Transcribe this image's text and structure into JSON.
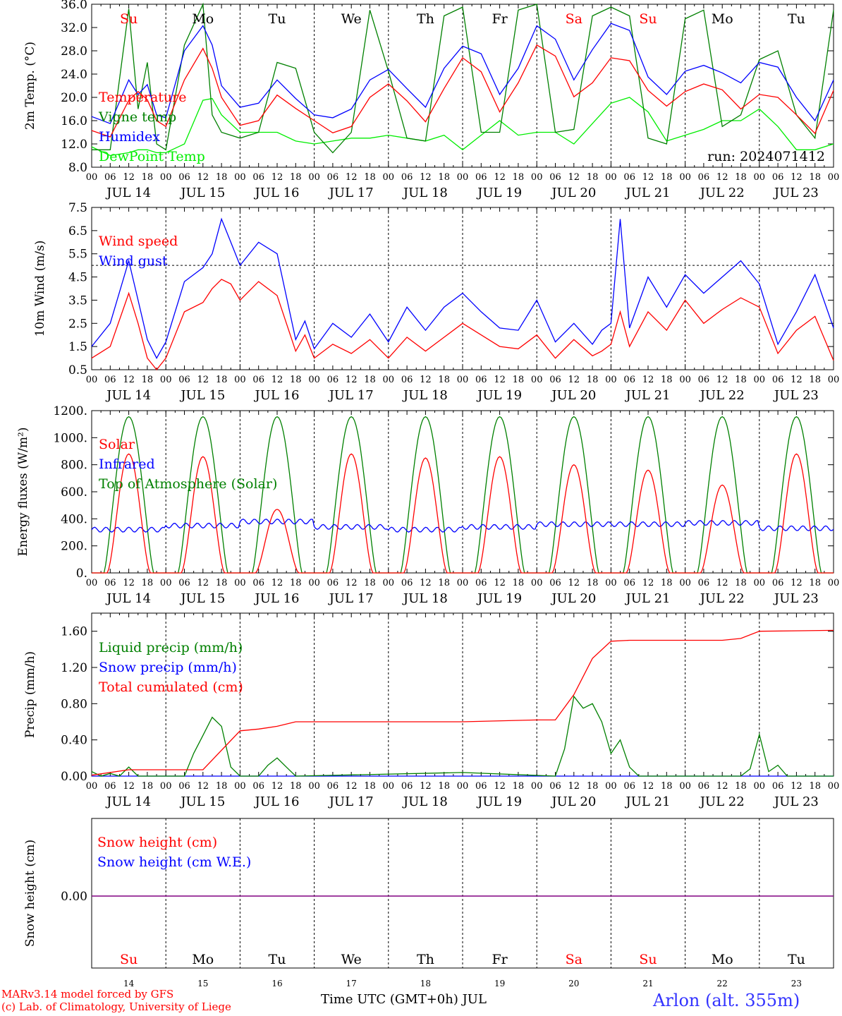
{
  "chart_data": [
    {
      "type": "line",
      "ylabel": "2m Temp. (°C)",
      "ylim": [
        8.0,
        36.0
      ],
      "yticks": [
        "8.0",
        "12.0",
        "16.0",
        "20.0",
        "24.0",
        "28.0",
        "32.0",
        "36.0"
      ],
      "run_label": "run: 2024071412",
      "weekday_labels": [
        "Su",
        "Mo",
        "Tu",
        "We",
        "Th",
        "Fr",
        "Sa",
        "Su",
        "Mo",
        "Tu"
      ],
      "series": [
        {
          "name": "Temperature",
          "color": "#ff0000",
          "x": [
            0,
            6,
            12,
            15,
            18,
            21,
            24,
            30,
            36,
            39,
            42,
            48,
            54,
            60,
            66,
            72,
            78,
            84,
            90,
            96,
            102,
            108,
            114,
            120,
            126,
            132,
            138,
            144,
            150,
            156,
            162,
            168,
            174,
            180,
            186,
            192,
            198,
            204,
            210,
            216,
            222,
            228,
            234,
            240
          ],
          "values": [
            14.3,
            13.2,
            19.5,
            21.0,
            19.6,
            16.0,
            15.0,
            23.0,
            28.4,
            25.0,
            20.0,
            15.2,
            16.0,
            20.4,
            18.1,
            16.0,
            13.9,
            15.0,
            20.0,
            22.3,
            19.4,
            15.8,
            21.5,
            26.8,
            24.4,
            17.5,
            22.5,
            29.0,
            27.1,
            20.1,
            22.5,
            26.8,
            26.3,
            21.2,
            18.5,
            21.0,
            22.3,
            21.3,
            18.0,
            20.5,
            20.0,
            17.0,
            13.8,
            21.2
          ]
        },
        {
          "name": "Vigne temp",
          "color": "#008000",
          "x": [
            0,
            6,
            12,
            15,
            18,
            21,
            24,
            30,
            36,
            39,
            42,
            48,
            54,
            60,
            66,
            72,
            78,
            84,
            90,
            96,
            102,
            108,
            114,
            120,
            126,
            132,
            138,
            144,
            150,
            156,
            162,
            168,
            174,
            180,
            186,
            192,
            198,
            204,
            210,
            216,
            222,
            228,
            234,
            240
          ],
          "values": [
            11.0,
            11.0,
            35.2,
            18.0,
            26.0,
            12.0,
            11.0,
            29.0,
            36.0,
            17.0,
            14.0,
            13.0,
            14.0,
            26.0,
            25.0,
            14.0,
            10.5,
            14.0,
            35.0,
            24.5,
            13.0,
            12.5,
            34.0,
            35.5,
            14.0,
            14.0,
            35.0,
            36.0,
            14.0,
            14.5,
            34.0,
            35.5,
            34.0,
            13.0,
            12.0,
            33.5,
            35.0,
            15.0,
            17.0,
            26.5,
            28.0,
            17.0,
            13.0,
            35.0
          ]
        },
        {
          "name": "Humidex",
          "color": "#0000ff",
          "x": [
            0,
            6,
            12,
            15,
            18,
            21,
            24,
            30,
            36,
            39,
            42,
            48,
            54,
            60,
            66,
            72,
            78,
            84,
            90,
            96,
            102,
            108,
            114,
            120,
            126,
            132,
            138,
            144,
            150,
            156,
            162,
            168,
            174,
            180,
            186,
            192,
            198,
            204,
            210,
            216,
            222,
            228,
            234,
            240
          ],
          "values": [
            16.7,
            15.5,
            23.0,
            20.5,
            22.2,
            17.0,
            16.5,
            28.0,
            32.3,
            29.0,
            22.0,
            18.3,
            19.0,
            23.0,
            19.8,
            17.0,
            16.5,
            18.0,
            23.0,
            24.8,
            21.5,
            18.3,
            25.0,
            28.8,
            27.5,
            20.5,
            25.0,
            32.3,
            30.0,
            23.0,
            28.2,
            32.7,
            31.5,
            23.5,
            20.5,
            24.5,
            25.5,
            24.2,
            22.5,
            26.0,
            25.2,
            20.0,
            16.0,
            23.0
          ]
        },
        {
          "name": "DewPoint Temp",
          "color": "#00ee00",
          "x": [
            0,
            6,
            12,
            15,
            18,
            21,
            24,
            30,
            36,
            39,
            42,
            48,
            54,
            60,
            66,
            72,
            78,
            84,
            90,
            96,
            102,
            108,
            114,
            120,
            126,
            132,
            138,
            144,
            150,
            156,
            162,
            168,
            174,
            180,
            186,
            192,
            198,
            204,
            210,
            216,
            222,
            228,
            234,
            240
          ],
          "values": [
            11.5,
            10.0,
            10.5,
            11.0,
            11.0,
            10.5,
            10.5,
            12.0,
            19.5,
            19.8,
            17.0,
            14.0,
            14.0,
            14.0,
            12.5,
            12.0,
            12.5,
            13.0,
            13.0,
            13.5,
            13.0,
            12.5,
            13.5,
            11.0,
            13.5,
            16.0,
            13.5,
            14.0,
            14.0,
            12.0,
            15.5,
            19.0,
            20.0,
            17.5,
            12.5,
            13.5,
            14.5,
            16.0,
            16.0,
            18.0,
            15.0,
            11.0,
            11.0,
            12.0
          ]
        }
      ]
    },
    {
      "type": "line",
      "ylabel": "10m Wind (m/s)",
      "ylim": [
        0.5,
        7.5
      ],
      "yticks": [
        "0.5",
        "1.5",
        "2.5",
        "3.5",
        "4.5",
        "5.5",
        "6.5",
        "7.5"
      ],
      "ref_line": 5.0,
      "series": [
        {
          "name": "Wind speed",
          "color": "#ff0000",
          "x": [
            0,
            6,
            12,
            15,
            18,
            21,
            24,
            30,
            36,
            39,
            42,
            45,
            48,
            54,
            60,
            66,
            69,
            72,
            78,
            84,
            90,
            96,
            102,
            108,
            114,
            120,
            126,
            132,
            138,
            144,
            150,
            156,
            162,
            165,
            168,
            171,
            174,
            180,
            186,
            192,
            198,
            204,
            210,
            216,
            222,
            228,
            234,
            240
          ],
          "values": [
            1.0,
            1.5,
            3.8,
            2.5,
            1.0,
            0.5,
            1.0,
            3.0,
            3.4,
            4.0,
            4.4,
            4.2,
            3.5,
            4.3,
            3.7,
            1.3,
            2.0,
            1.0,
            1.6,
            1.2,
            1.8,
            1.0,
            1.9,
            1.3,
            1.9,
            2.5,
            2.0,
            1.5,
            1.4,
            2.0,
            1.0,
            1.8,
            1.1,
            1.3,
            1.6,
            3.0,
            1.5,
            3.0,
            2.2,
            3.5,
            2.5,
            3.1,
            3.6,
            3.2,
            1.2,
            2.2,
            2.8,
            0.9
          ]
        },
        {
          "name": "Wind gust",
          "color": "#0000ff",
          "x": [
            0,
            6,
            12,
            15,
            18,
            21,
            24,
            30,
            36,
            39,
            42,
            45,
            48,
            54,
            60,
            66,
            69,
            72,
            78,
            84,
            90,
            96,
            102,
            108,
            114,
            120,
            126,
            132,
            138,
            144,
            150,
            156,
            162,
            165,
            168,
            171,
            174,
            180,
            186,
            192,
            198,
            204,
            210,
            216,
            222,
            228,
            234,
            240
          ],
          "values": [
            1.5,
            2.5,
            5.2,
            3.5,
            1.8,
            1.0,
            1.7,
            4.3,
            4.9,
            5.5,
            7.0,
            6.0,
            5.0,
            6.0,
            5.5,
            1.8,
            2.6,
            1.4,
            2.5,
            1.9,
            2.9,
            1.7,
            3.2,
            2.2,
            3.2,
            3.8,
            3.0,
            2.3,
            2.2,
            3.5,
            1.7,
            2.5,
            1.6,
            2.2,
            2.5,
            7.0,
            2.3,
            4.5,
            3.2,
            4.6,
            3.8,
            4.5,
            5.2,
            4.2,
            1.6,
            3.0,
            4.6,
            2.3
          ]
        }
      ]
    },
    {
      "type": "line",
      "ylabel": "Energy fluxes (W/m²)",
      "ylim": [
        0,
        1200
      ],
      "yticks": [
        "0.",
        "200.",
        "400.",
        "600.",
        "800.",
        "1000.",
        "1200."
      ],
      "series": [
        {
          "name": "Solar",
          "color": "#ff0000",
          "day_peaks": [
            880,
            860,
            470,
            880,
            850,
            860,
            800,
            760,
            650,
            880
          ]
        },
        {
          "name": "Infrared",
          "color": "#0000ff",
          "level_by_day": [
            320,
            350,
            380,
            340,
            320,
            340,
            360,
            360,
            370,
            330
          ]
        },
        {
          "name": "Top of Atmosphere (Solar)",
          "color": "#008000",
          "peak": 1155
        }
      ]
    },
    {
      "type": "line",
      "ylabel": "Precip (mm/h)",
      "ylim": [
        0,
        1.8
      ],
      "yticks": [
        "0.00",
        "0.40",
        "0.80",
        "1.20",
        "1.60"
      ],
      "series": [
        {
          "name": "Liquid precip (mm/h)",
          "color": "#008000",
          "x": [
            0,
            3,
            6,
            9,
            12,
            15,
            18,
            21,
            30,
            33,
            36,
            39,
            42,
            45,
            48,
            54,
            57,
            60,
            63,
            66,
            120,
            150,
            153,
            156,
            159,
            162,
            165,
            168,
            171,
            174,
            177,
            192,
            210,
            213,
            216,
            219,
            222,
            225,
            240
          ],
          "values": [
            0.05,
            0.0,
            0.03,
            0.0,
            0.1,
            0.0,
            0.0,
            0.0,
            0.0,
            0.25,
            0.45,
            0.65,
            0.55,
            0.1,
            0.0,
            0.0,
            0.12,
            0.2,
            0.1,
            0.0,
            0.04,
            0.0,
            0.3,
            0.88,
            0.75,
            0.8,
            0.6,
            0.25,
            0.4,
            0.1,
            0.0,
            0.0,
            0.0,
            0.08,
            0.46,
            0.05,
            0.12,
            0.0,
            0.0
          ]
        },
        {
          "name": "Snow precip (mm/h)",
          "color": "#0000ff",
          "x": [
            0,
            240
          ],
          "values": [
            0,
            0
          ]
        },
        {
          "name": "Total cumulated (cm)",
          "color": "#ff0000",
          "x": [
            0,
            12,
            36,
            48,
            54,
            60,
            66,
            72,
            120,
            144,
            150,
            156,
            162,
            168,
            174,
            192,
            204,
            210,
            216,
            240
          ],
          "values": [
            0.01,
            0.07,
            0.07,
            0.5,
            0.52,
            0.55,
            0.6,
            0.6,
            0.6,
            0.62,
            0.62,
            0.9,
            1.3,
            1.49,
            1.5,
            1.5,
            1.5,
            1.52,
            1.6,
            1.61
          ]
        }
      ]
    },
    {
      "type": "line",
      "ylabel": "Snow height (cm)",
      "yticks": [
        "0.00"
      ],
      "series": [
        {
          "name": "Snow height (cm)",
          "color": "#ff0000",
          "x": [
            0,
            240
          ],
          "values": [
            0,
            0
          ]
        },
        {
          "name": "Snow height (cm W.E.)",
          "color": "#0000ff",
          "x": [
            0,
            240
          ],
          "values": [
            0,
            0
          ]
        }
      ]
    }
  ],
  "x_axis": {
    "hour_ticks": [
      "00",
      "06",
      "12",
      "18"
    ],
    "day_labels": [
      "JUL 14",
      "JUL 15",
      "JUL 16",
      "JUL 17",
      "JUL 18",
      "JUL 19",
      "JUL 20",
      "JUL 21",
      "JUL 22",
      "JUL 23"
    ],
    "day_numbers": [
      "14",
      "15",
      "16",
      "17",
      "18",
      "19",
      "20",
      "21",
      "22",
      "23"
    ],
    "weekday_labels": [
      "Su",
      "Mo",
      "Tu",
      "We",
      "Th",
      "Fr",
      "Sa",
      "Su",
      "Mo",
      "Tu"
    ],
    "weekend_color": "#ff0000",
    "xlabel": "Time UTC (GMT+0h) JUL"
  },
  "footer": {
    "credit_line1": "MARv3.14 model forced by GFS",
    "credit_line2": "(c) Lab. of Climatology, University of Liege",
    "station": "Arlon (alt. 355m)"
  }
}
